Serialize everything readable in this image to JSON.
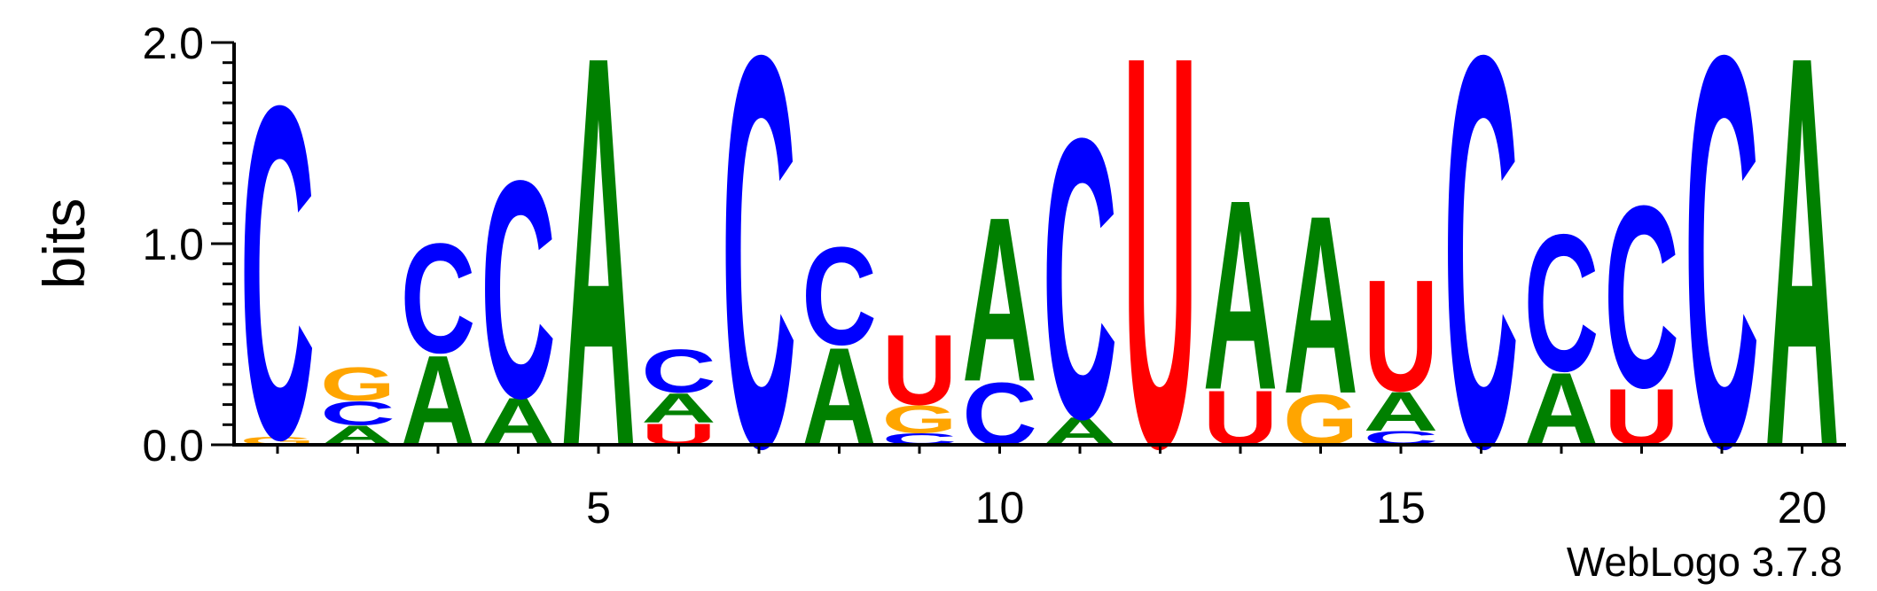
{
  "chart_data": {
    "type": "sequence-logo",
    "ylabel": "bits",
    "ylim": [
      0,
      2
    ],
    "yticks": [
      "0.0",
      "1.0",
      "2.0"
    ],
    "xticks": [
      {
        "pos": 5,
        "label": "5"
      },
      {
        "pos": 10,
        "label": "10"
      },
      {
        "pos": 15,
        "label": "15"
      },
      {
        "pos": 20,
        "label": "20"
      }
    ],
    "positions": [
      {
        "pos": 1,
        "stack": [
          {
            "letter": "G",
            "bits": 0.04
          },
          {
            "letter": "C",
            "bits": 1.7
          }
        ]
      },
      {
        "pos": 2,
        "stack": [
          {
            "letter": "A",
            "bits": 0.1
          },
          {
            "letter": "C",
            "bits": 0.12
          },
          {
            "letter": "G",
            "bits": 0.17
          }
        ]
      },
      {
        "pos": 3,
        "stack": [
          {
            "letter": "A",
            "bits": 0.46
          },
          {
            "letter": "C",
            "bits": 0.56
          }
        ]
      },
      {
        "pos": 4,
        "stack": [
          {
            "letter": "A",
            "bits": 0.24
          },
          {
            "letter": "C",
            "bits": 1.11
          }
        ]
      },
      {
        "pos": 5,
        "stack": [
          {
            "letter": "A",
            "bits": 2.0
          }
        ]
      },
      {
        "pos": 6,
        "stack": [
          {
            "letter": "U",
            "bits": 0.11
          },
          {
            "letter": "A",
            "bits": 0.15
          },
          {
            "letter": "C",
            "bits": 0.22
          }
        ]
      },
      {
        "pos": 7,
        "stack": [
          {
            "letter": "C",
            "bits": 2.0
          }
        ]
      },
      {
        "pos": 8,
        "stack": [
          {
            "letter": "A",
            "bits": 0.5
          },
          {
            "letter": "C",
            "bits": 0.5
          }
        ]
      },
      {
        "pos": 9,
        "stack": [
          {
            "letter": "C",
            "bits": 0.06
          },
          {
            "letter": "G",
            "bits": 0.14
          },
          {
            "letter": "U",
            "bits": 0.36
          }
        ]
      },
      {
        "pos": 10,
        "stack": [
          {
            "letter": "C",
            "bits": 0.32
          },
          {
            "letter": "A",
            "bits": 0.84
          }
        ]
      },
      {
        "pos": 11,
        "stack": [
          {
            "letter": "A",
            "bits": 0.14
          },
          {
            "letter": "C",
            "bits": 1.43
          }
        ]
      },
      {
        "pos": 12,
        "stack": [
          {
            "letter": "U",
            "bits": 2.0
          }
        ]
      },
      {
        "pos": 13,
        "stack": [
          {
            "letter": "U",
            "bits": 0.28
          },
          {
            "letter": "A",
            "bits": 0.97
          }
        ]
      },
      {
        "pos": 14,
        "stack": [
          {
            "letter": "G",
            "bits": 0.26
          },
          {
            "letter": "A",
            "bits": 0.91
          }
        ]
      },
      {
        "pos": 15,
        "stack": [
          {
            "letter": "C",
            "bits": 0.07
          },
          {
            "letter": "A",
            "bits": 0.2
          },
          {
            "letter": "U",
            "bits": 0.57
          }
        ]
      },
      {
        "pos": 16,
        "stack": [
          {
            "letter": "C",
            "bits": 2.0
          }
        ]
      },
      {
        "pos": 17,
        "stack": [
          {
            "letter": "A",
            "bits": 0.37
          },
          {
            "letter": "C",
            "bits": 0.7
          }
        ]
      },
      {
        "pos": 18,
        "stack": [
          {
            "letter": "U",
            "bits": 0.29
          },
          {
            "letter": "C",
            "bits": 0.93
          }
        ]
      },
      {
        "pos": 19,
        "stack": [
          {
            "letter": "C",
            "bits": 2.0
          }
        ]
      },
      {
        "pos": 20,
        "stack": [
          {
            "letter": "A",
            "bits": 2.0
          }
        ]
      }
    ],
    "colors": {
      "A": "#008000",
      "C": "#0000ff",
      "G": "#ffa500",
      "U": "#ff0000"
    },
    "footer": "WebLogo 3.7.8"
  }
}
